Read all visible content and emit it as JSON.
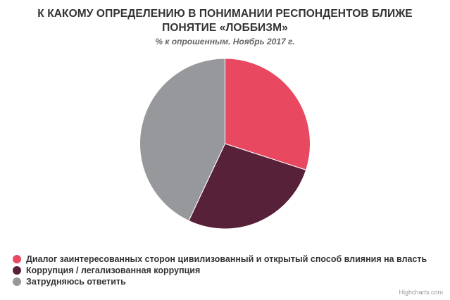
{
  "chart_data": {
    "type": "pie",
    "title_lines": [
      "К КАКОМУ ОПРЕДЕЛЕНИЮ В ПОНИМАНИИ РЕСПОНДЕНТОВ БЛИЖЕ",
      "ПОНЯТИЕ «ЛОББИЗМ»"
    ],
    "subtitle": "% к опрошенным. Ноябрь 2017 г.",
    "legend_position": "bottom-left",
    "series": [
      {
        "data": [
          {
            "label": "Диалог заинтересованных сторон цивилизованный и открытый способ влияния на власть",
            "value": 30,
            "color": "#e84960"
          },
          {
            "label": "Коррупция / легализованная коррупция",
            "value": 27,
            "color": "#58213a"
          },
          {
            "label": "Затрудняюсь ответить",
            "value": 43,
            "color": "#97989b"
          }
        ]
      }
    ]
  },
  "credits": "Highcharts.com"
}
